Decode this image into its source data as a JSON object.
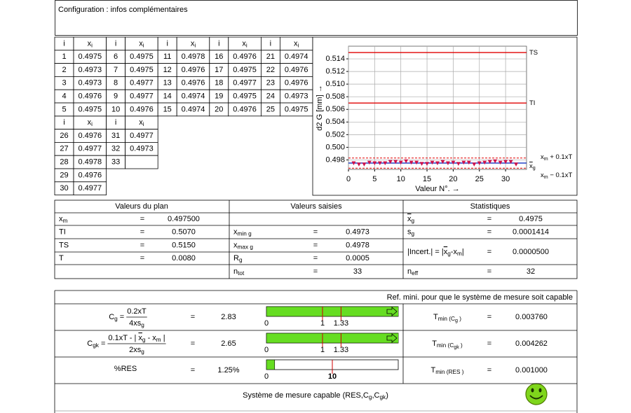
{
  "header": {
    "title": "Configuration : infos complémentaires"
  },
  "table": {
    "col_i": "i",
    "col_x": [
      {
        "t": "x"
      },
      {
        "t": "i",
        "sub": true
      }
    ],
    "i": [
      1,
      2,
      3,
      4,
      5,
      6,
      7,
      8,
      9,
      10,
      11,
      12,
      13,
      14,
      15,
      16,
      17,
      18,
      19,
      20,
      21,
      22,
      23,
      24,
      25,
      26,
      27,
      28,
      29,
      30,
      31,
      32,
      33
    ],
    "x": [
      0.4975,
      0.4973,
      0.4973,
      0.4976,
      0.4975,
      0.4975,
      0.4975,
      0.4977,
      0.4977,
      0.4976,
      0.4978,
      0.4976,
      0.4976,
      0.4974,
      0.4974,
      0.4976,
      0.4975,
      0.4977,
      0.4975,
      0.4976,
      0.4974,
      0.4976,
      0.4976,
      0.4973,
      0.4975,
      0.4976,
      0.4977,
      0.4978,
      0.4976,
      0.4977,
      0.4977,
      0.4973,
      null
    ]
  },
  "chart": {
    "y_label": "d2 G [mm] →",
    "x_label": "Valeur N°. →",
    "ylim": [
      0.4965,
      0.516
    ],
    "yticks": [
      0.498,
      {
        "value": 0.5,
        "label": "0.500"
      },
      0.502,
      0.504,
      0.506,
      0.508,
      {
        "value": 0.51,
        "label": "0.510"
      },
      0.512,
      0.514
    ],
    "xlim": [
      0,
      34
    ],
    "xticks": [
      0,
      5,
      10,
      15,
      20,
      25,
      30
    ],
    "grid": true,
    "point_color": "#d0104a",
    "lines": [
      {
        "label": [
          {
            "t": "TS"
          }
        ],
        "value": 0.515,
        "color": "#e00000",
        "dashed": false
      },
      {
        "label": [
          {
            "t": "TI"
          }
        ],
        "value": 0.507,
        "color": "#e00000",
        "dashed": false
      },
      {
        "label": [
          {
            "t": "x"
          },
          {
            "t": "m",
            "sub": true
          },
          {
            "t": " + 0.1xT"
          }
        ],
        "value": 0.4983,
        "color": "#e00000",
        "dashed": true
      },
      {
        "label": [
          {
            "t": "x",
            "bar": true
          },
          {
            "t": "g",
            "sub": true
          }
        ],
        "value": 0.4975,
        "color": "#1030c0",
        "dashed": false
      },
      {
        "label": [
          {
            "t": "x"
          },
          {
            "t": "m",
            "sub": true
          },
          {
            "t": " − 0.1xT"
          }
        ],
        "value": 0.4967,
        "color": "#e00000",
        "dashed": true
      }
    ]
  },
  "stats": {
    "headers": [
      "Valeurs du plan",
      "Valeurs saisies",
      "Statistiques"
    ],
    "eq": "=",
    "plan": [
      {
        "label": [
          {
            "t": "x"
          },
          {
            "t": "m",
            "sub": true
          }
        ],
        "value": "0.497500"
      },
      {
        "label": [
          {
            "t": "TI"
          }
        ],
        "value": "0.5070"
      },
      {
        "label": [
          {
            "t": "TS"
          }
        ],
        "value": "0.5150"
      },
      {
        "label": [
          {
            "t": "T"
          }
        ],
        "value": "0.0080"
      }
    ],
    "saisies": [
      {
        "label": [
          {
            "t": "x"
          },
          {
            "t": "min g",
            "sub": true
          }
        ],
        "value": "0.4973"
      },
      {
        "label": [
          {
            "t": "x"
          },
          {
            "t": "max g",
            "sub": true
          }
        ],
        "value": "0.4978"
      },
      {
        "label": [
          {
            "t": "R"
          },
          {
            "t": "g",
            "sub": true
          }
        ],
        "value": "0.0005"
      },
      {
        "label": [
          {
            "t": "n"
          },
          {
            "t": "tot",
            "sub": true
          }
        ],
        "value": "33"
      }
    ],
    "statistiques": [
      {
        "label": [
          {
            "t": "x",
            "bar": true
          },
          {
            "t": "g",
            "sub": true
          }
        ],
        "value": "0.4975"
      },
      {
        "label": [
          {
            "t": "s"
          },
          {
            "t": "g",
            "sub": true
          }
        ],
        "value": "0.0001414"
      },
      {
        "label": [
          {
            "t": "|Incert.| = |"
          },
          {
            "t": "x",
            "bar": true
          },
          {
            "t": "g",
            "sub": true
          },
          {
            "t": "-x"
          },
          {
            "t": "m",
            "sub": true
          },
          {
            "t": "|"
          }
        ],
        "value": "0.0000500"
      },
      {
        "label": [
          {
            "t": "n"
          },
          {
            "t": "eff",
            "sub": true
          }
        ],
        "value": "32"
      }
    ]
  },
  "capability": {
    "ref": "Ref. mini. pour que le système de mesure soit capable",
    "eq": "=",
    "rows": [
      {
        "lhs": [
          {
            "t": "C"
          },
          {
            "t": "g",
            "sub": true
          },
          {
            "t": " ="
          }
        ],
        "num": [
          {
            "t": "0.2xT"
          }
        ],
        "den": [
          {
            "t": "4xs"
          },
          {
            "t": "g",
            "sub": true
          }
        ],
        "value": 2.83,
        "gauge": {
          "lim": [
            0,
            2.35
          ],
          "ticks": [
            0,
            1,
            1.33
          ],
          "color": "#66dd22",
          "bold_ticks": false
        },
        "tmin": {
          "label": [
            {
              "t": "T"
            },
            {
              "t": "min (C",
              "sub": true
            },
            {
              "t": "g",
              "sub": true,
              "small": true
            },
            {
              "t": " )",
              "sub": true
            }
          ],
          "value": "0.003760"
        }
      },
      {
        "lhs": [
          {
            "t": "C"
          },
          {
            "t": "gk",
            "sub": true
          },
          {
            "t": " ="
          }
        ],
        "num": [
          {
            "t": "0.1xT - | "
          },
          {
            "t": "x",
            "bar": true
          },
          {
            "t": "g",
            "sub": true
          },
          {
            "t": " - x"
          },
          {
            "t": "m",
            "sub": true
          },
          {
            "t": " |"
          }
        ],
        "den": [
          {
            "t": "2xs"
          },
          {
            "t": "g",
            "sub": true
          }
        ],
        "value": 2.65,
        "gauge": {
          "lim": [
            0,
            2.35
          ],
          "ticks": [
            0,
            1,
            1.33
          ],
          "color": "#66dd22",
          "bold_ticks": false
        },
        "tmin": {
          "label": [
            {
              "t": "T"
            },
            {
              "t": "min (C",
              "sub": true
            },
            {
              "t": "gk",
              "sub": true,
              "small": true
            },
            {
              "t": " )",
              "sub": true
            }
          ],
          "value": "0.004262"
        }
      },
      {
        "lhs": [
          {
            "t": "%RES"
          }
        ],
        "value": 1.25,
        "value_label": "1.25%",
        "gauge": {
          "lim": [
            0,
            20
          ],
          "ticks": [
            0,
            10
          ],
          "color": "#66dd22",
          "bold_ticks": true
        },
        "tmin": {
          "label": [
            {
              "t": "T"
            },
            {
              "t": "min (RES )",
              "sub": true
            }
          ],
          "value": "0.001000"
        }
      }
    ],
    "footer": [
      {
        "t": "Système de mesure capable (RES,C"
      },
      {
        "t": "g",
        "sub": true
      },
      {
        "t": ",C"
      },
      {
        "t": "gk",
        "sub": true
      },
      {
        "t": ")"
      }
    ]
  }
}
